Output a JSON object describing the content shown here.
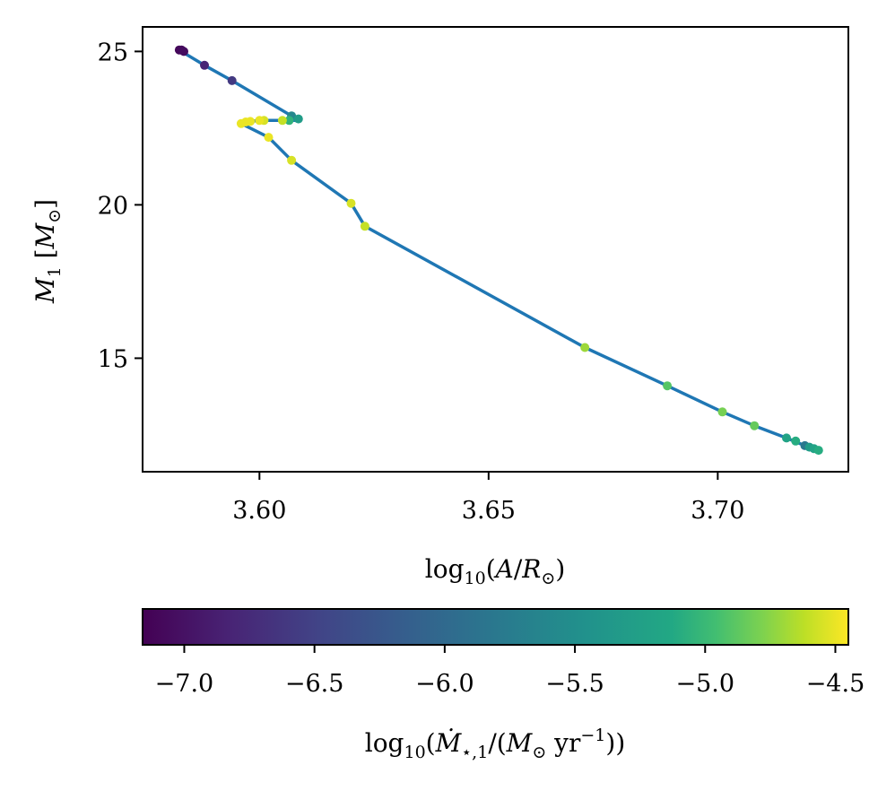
{
  "chart_data": {
    "type": "scatter",
    "xlabel": {
      "base": "log",
      "sub": "10",
      "pre": "(",
      "var1": "A",
      "slash": "/",
      "var2": "R",
      "sun": "⊙",
      "post": ")"
    },
    "ylabel": {
      "var": "M",
      "sub": "1",
      "open": " [",
      "mvar": "M",
      "sun": "⊙",
      "close": "]"
    },
    "colorbar_label": {
      "base": "log",
      "sub": "10",
      "pre": "(",
      "var": "Ṁ",
      "subs": "⋆,1",
      "mid": "/(",
      "mvar": "M",
      "sun": "⊙",
      "unit": " yr",
      "exp": "−1",
      "post": "))"
    },
    "xlim": [
      3.5745,
      3.7285
    ],
    "ylim": [
      11.3,
      25.8
    ],
    "xticks": [
      3.6,
      3.65,
      3.7
    ],
    "xtick_labels": [
      "3.60",
      "3.65",
      "3.70"
    ],
    "yticks": [
      15,
      20,
      25
    ],
    "ytick_labels": [
      "15",
      "20",
      "25"
    ],
    "colorbar": {
      "range": [
        -7.16,
        -4.45
      ],
      "ticks": [
        -7.0,
        -6.5,
        -6.0,
        -5.5,
        -5.0,
        -4.5
      ],
      "tick_labels": [
        "−7.0",
        "−6.5",
        "−6.0",
        "−5.5",
        "−5.0",
        "−4.5"
      ],
      "colormap": "viridis"
    },
    "line": {
      "color": "#1f77b4",
      "x": [
        3.5825,
        3.583,
        3.588,
        3.594,
        3.607,
        3.608,
        3.609,
        3.607,
        3.605,
        3.6,
        3.598,
        3.596,
        3.602,
        3.607,
        3.62,
        3.623,
        3.671,
        3.689,
        3.701,
        3.708,
        3.715,
        3.719,
        3.721
      ],
      "y": [
        25.05,
        25.0,
        24.55,
        24.05,
        22.9,
        22.85,
        22.75,
        22.75,
        22.75,
        22.75,
        22.72,
        22.65,
        22.2,
        21.45,
        20.05,
        19.3,
        15.35,
        14.1,
        13.25,
        12.8,
        12.4,
        12.15,
        12.0
      ]
    },
    "points": [
      {
        "x": 3.5825,
        "y": 25.05,
        "c": -7.1
      },
      {
        "x": 3.583,
        "y": 25.05,
        "c": -7.08
      },
      {
        "x": 3.5835,
        "y": 25.0,
        "c": -7.05
      },
      {
        "x": 3.588,
        "y": 24.55,
        "c": -6.8
      },
      {
        "x": 3.594,
        "y": 24.05,
        "c": -6.6
      },
      {
        "x": 3.607,
        "y": 22.9,
        "c": -5.6
      },
      {
        "x": 3.6085,
        "y": 22.8,
        "c": -5.3
      },
      {
        "x": 3.6065,
        "y": 22.75,
        "c": -5.05
      },
      {
        "x": 3.605,
        "y": 22.75,
        "c": -4.6
      },
      {
        "x": 3.601,
        "y": 22.75,
        "c": -4.55
      },
      {
        "x": 3.6,
        "y": 22.75,
        "c": -4.5
      },
      {
        "x": 3.598,
        "y": 22.72,
        "c": -4.5
      },
      {
        "x": 3.597,
        "y": 22.7,
        "c": -4.5
      },
      {
        "x": 3.596,
        "y": 22.65,
        "c": -4.5
      },
      {
        "x": 3.602,
        "y": 22.2,
        "c": -4.5
      },
      {
        "x": 3.607,
        "y": 21.45,
        "c": -4.55
      },
      {
        "x": 3.62,
        "y": 20.05,
        "c": -4.55
      },
      {
        "x": 3.623,
        "y": 19.3,
        "c": -4.6
      },
      {
        "x": 3.671,
        "y": 15.35,
        "c": -4.7
      },
      {
        "x": 3.689,
        "y": 14.1,
        "c": -4.9
      },
      {
        "x": 3.701,
        "y": 13.25,
        "c": -4.8
      },
      {
        "x": 3.708,
        "y": 12.8,
        "c": -4.85
      },
      {
        "x": 3.715,
        "y": 12.4,
        "c": -5.2
      },
      {
        "x": 3.717,
        "y": 12.3,
        "c": -5.1
      },
      {
        "x": 3.719,
        "y": 12.15,
        "c": -5.8
      },
      {
        "x": 3.72,
        "y": 12.1,
        "c": -5.3
      },
      {
        "x": 3.721,
        "y": 12.05,
        "c": -5.2
      },
      {
        "x": 3.722,
        "y": 12.0,
        "c": -5.1
      }
    ]
  }
}
